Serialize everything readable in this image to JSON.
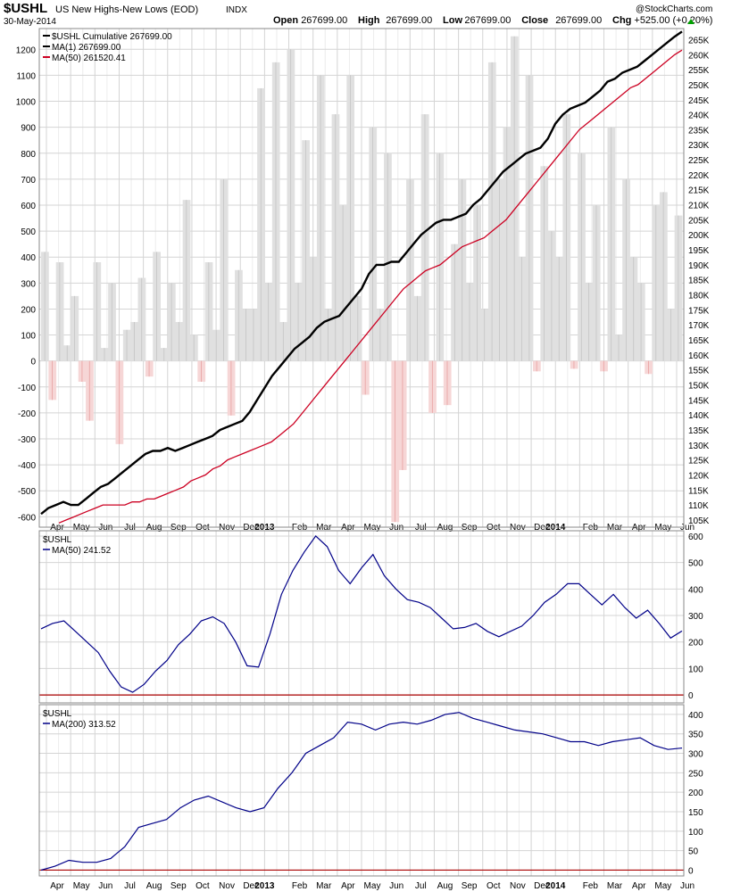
{
  "header": {
    "symbol": "$USHL",
    "name": "US New Highs-New Lows (EOD)",
    "exchange": "INDX",
    "date": "30-May-2014",
    "watermark": "@StockCharts.com",
    "ohlc": [
      {
        "label": "Open",
        "value": "267699.00"
      },
      {
        "label": "High",
        "value": "267699.00"
      },
      {
        "label": "Low",
        "value": "267699.00"
      },
      {
        "label": "Close",
        "value": "267699.00"
      },
      {
        "label": "Chg",
        "value": "+525.00 (+0.20%)"
      }
    ],
    "chg_arrow_color": "#00a000"
  },
  "colors": {
    "cumulative": "#000000",
    "ma50_main": "#cc0022",
    "lower_line": "#000088",
    "area_pos": "#e0e0e0",
    "area_neg": "#f6d6d6",
    "zero_line": "#aa0000",
    "grid": "#d4d4d4"
  },
  "x_axis": {
    "labels": [
      {
        "text": "Apr",
        "bold": false
      },
      {
        "text": "May",
        "bold": false
      },
      {
        "text": "Jun",
        "bold": false
      },
      {
        "text": "Jul",
        "bold": false
      },
      {
        "text": "Aug",
        "bold": false
      },
      {
        "text": "Sep",
        "bold": false
      },
      {
        "text": "Oct",
        "bold": false
      },
      {
        "text": "Nov",
        "bold": false
      },
      {
        "text": "Dec",
        "bold": false
      },
      {
        "text": "2013",
        "bold": true
      },
      {
        "text": "Feb",
        "bold": false
      },
      {
        "text": "Mar",
        "bold": false
      },
      {
        "text": "Apr",
        "bold": false
      },
      {
        "text": "May",
        "bold": false
      },
      {
        "text": "Jun",
        "bold": false
      },
      {
        "text": "Jul",
        "bold": false
      },
      {
        "text": "Aug",
        "bold": false
      },
      {
        "text": "Sep",
        "bold": false
      },
      {
        "text": "Oct",
        "bold": false
      },
      {
        "text": "Nov",
        "bold": false
      },
      {
        "text": "Dec",
        "bold": false
      },
      {
        "text": "2014",
        "bold": true
      },
      {
        "text": "Feb",
        "bold": false
      },
      {
        "text": "Mar",
        "bold": false
      },
      {
        "text": "Apr",
        "bold": false
      },
      {
        "text": "May",
        "bold": false
      },
      {
        "text": "Jun",
        "bold": false
      }
    ]
  },
  "chart_data": [
    {
      "type": "area",
      "panel": "main",
      "legend": [
        {
          "text": "$USHL Cumulative 267699.00",
          "color": "#000000"
        },
        {
          "text": "MA(1) 267699.00",
          "color": "#000000"
        },
        {
          "text": "MA(50) 261520.41",
          "color": "#cc0022"
        }
      ],
      "left_axis": {
        "ylim": [
          -640,
          1280
        ],
        "ticks": [
          -600,
          -500,
          -400,
          -300,
          -200,
          -100,
          0,
          100,
          200,
          300,
          400,
          500,
          600,
          700,
          800,
          900,
          1000,
          1100,
          1200
        ]
      },
      "right_axis": {
        "ylim": [
          102.6,
          268.7
        ],
        "unit": "K",
        "ticks": [
          105,
          110,
          115,
          120,
          125,
          130,
          135,
          140,
          145,
          150,
          155,
          160,
          165,
          170,
          175,
          180,
          185,
          190,
          195,
          200,
          205,
          210,
          215,
          220,
          225,
          230,
          235,
          240,
          245,
          250,
          255,
          260,
          265
        ]
      },
      "x_month_index": [
        0,
        1,
        2,
        3,
        4,
        5,
        6,
        7,
        8,
        9,
        10,
        11,
        12,
        13,
        14,
        15,
        16,
        17,
        18,
        19,
        20,
        21,
        22,
        23,
        24,
        25,
        26
      ],
      "cumulative_k": [
        107,
        109,
        110,
        111,
        110,
        110,
        112,
        114,
        116,
        117,
        119,
        121,
        123,
        125,
        127,
        128,
        128,
        129,
        128,
        129,
        130,
        131,
        132,
        133,
        135,
        136,
        137,
        138,
        141,
        145,
        149,
        153,
        156,
        159,
        162,
        164,
        166,
        169,
        171,
        172,
        173,
        176,
        179,
        182,
        187,
        190,
        190,
        191,
        191,
        194,
        197,
        200,
        202,
        204,
        205,
        205,
        206,
        207,
        210,
        212,
        215,
        218,
        221,
        223,
        225,
        227,
        228,
        229,
        232,
        237,
        240,
        242,
        243,
        244,
        246,
        248,
        251,
        252,
        254,
        255,
        256,
        258,
        260,
        262,
        264,
        266,
        267.7
      ],
      "ma50_k": [
        104,
        105,
        106,
        107,
        108,
        109,
        110,
        110,
        110,
        110,
        111,
        111,
        112,
        112,
        113,
        114,
        115,
        116,
        118,
        119,
        120,
        122,
        123,
        125,
        126,
        127,
        128,
        129,
        130,
        131,
        133,
        135,
        137,
        140,
        143,
        146,
        149,
        152,
        155,
        158,
        161,
        164,
        167,
        170,
        173,
        176,
        179,
        182,
        184,
        186,
        188,
        189,
        190,
        192,
        194,
        196,
        197,
        198,
        199,
        201,
        203,
        205,
        208,
        211,
        214,
        217,
        220,
        223,
        226,
        229,
        232,
        235,
        237,
        239,
        241,
        243,
        245,
        247,
        249,
        250,
        252,
        254,
        256,
        258,
        260,
        261.5
      ],
      "daily_hl": [
        420,
        -150,
        380,
        60,
        250,
        -80,
        -230,
        380,
        50,
        300,
        -320,
        120,
        150,
        320,
        -60,
        420,
        50,
        300,
        150,
        620,
        100,
        -80,
        380,
        120,
        700,
        -210,
        350,
        200,
        200,
        1050,
        300,
        1150,
        150,
        1200,
        300,
        850,
        400,
        1100,
        200,
        950,
        600,
        1100,
        250,
        -130,
        900,
        200,
        800,
        -620,
        -420,
        700,
        250,
        950,
        -200,
        800,
        -170,
        450,
        700,
        300,
        600,
        200,
        1150,
        700,
        900,
        1250,
        400,
        1100,
        -40,
        750,
        500,
        400,
        950,
        -30,
        800,
        300,
        600,
        -40,
        900,
        100,
        700,
        400,
        300,
        -50,
        600,
        650,
        200,
        560
      ]
    },
    {
      "type": "line",
      "panel": "middle",
      "legend": [
        {
          "text": "$USHL",
          "color": "#000000"
        },
        {
          "text": "MA(50) 241.52",
          "color": "#000088"
        }
      ],
      "ylim": [
        -30,
        620
      ],
      "ticks": [
        0,
        100,
        200,
        300,
        400,
        500,
        600
      ],
      "values": [
        250,
        270,
        280,
        240,
        200,
        160,
        90,
        30,
        10,
        40,
        90,
        130,
        190,
        230,
        280,
        295,
        270,
        200,
        110,
        105,
        230,
        380,
        470,
        540,
        600,
        560,
        470,
        420,
        480,
        530,
        450,
        400,
        360,
        350,
        330,
        290,
        250,
        255,
        270,
        240,
        220,
        240,
        260,
        300,
        350,
        380,
        420,
        420,
        380,
        340,
        380,
        330,
        290,
        320,
        270,
        215,
        241.52
      ]
    },
    {
      "type": "line",
      "panel": "bottom",
      "legend": [
        {
          "text": "$USHL",
          "color": "#000000"
        },
        {
          "text": "MA(200) 313.52",
          "color": "#000088"
        }
      ],
      "ylim": [
        -15,
        425
      ],
      "ticks": [
        0,
        50,
        100,
        150,
        200,
        250,
        300,
        350,
        400
      ],
      "values": [
        0,
        10,
        25,
        20,
        20,
        30,
        60,
        110,
        120,
        130,
        160,
        180,
        190,
        175,
        160,
        150,
        160,
        210,
        250,
        300,
        320,
        340,
        380,
        375,
        360,
        375,
        380,
        375,
        385,
        400,
        405,
        390,
        380,
        370,
        360,
        355,
        350,
        340,
        330,
        330,
        320,
        330,
        335,
        340,
        320,
        310,
        313.52
      ]
    }
  ]
}
